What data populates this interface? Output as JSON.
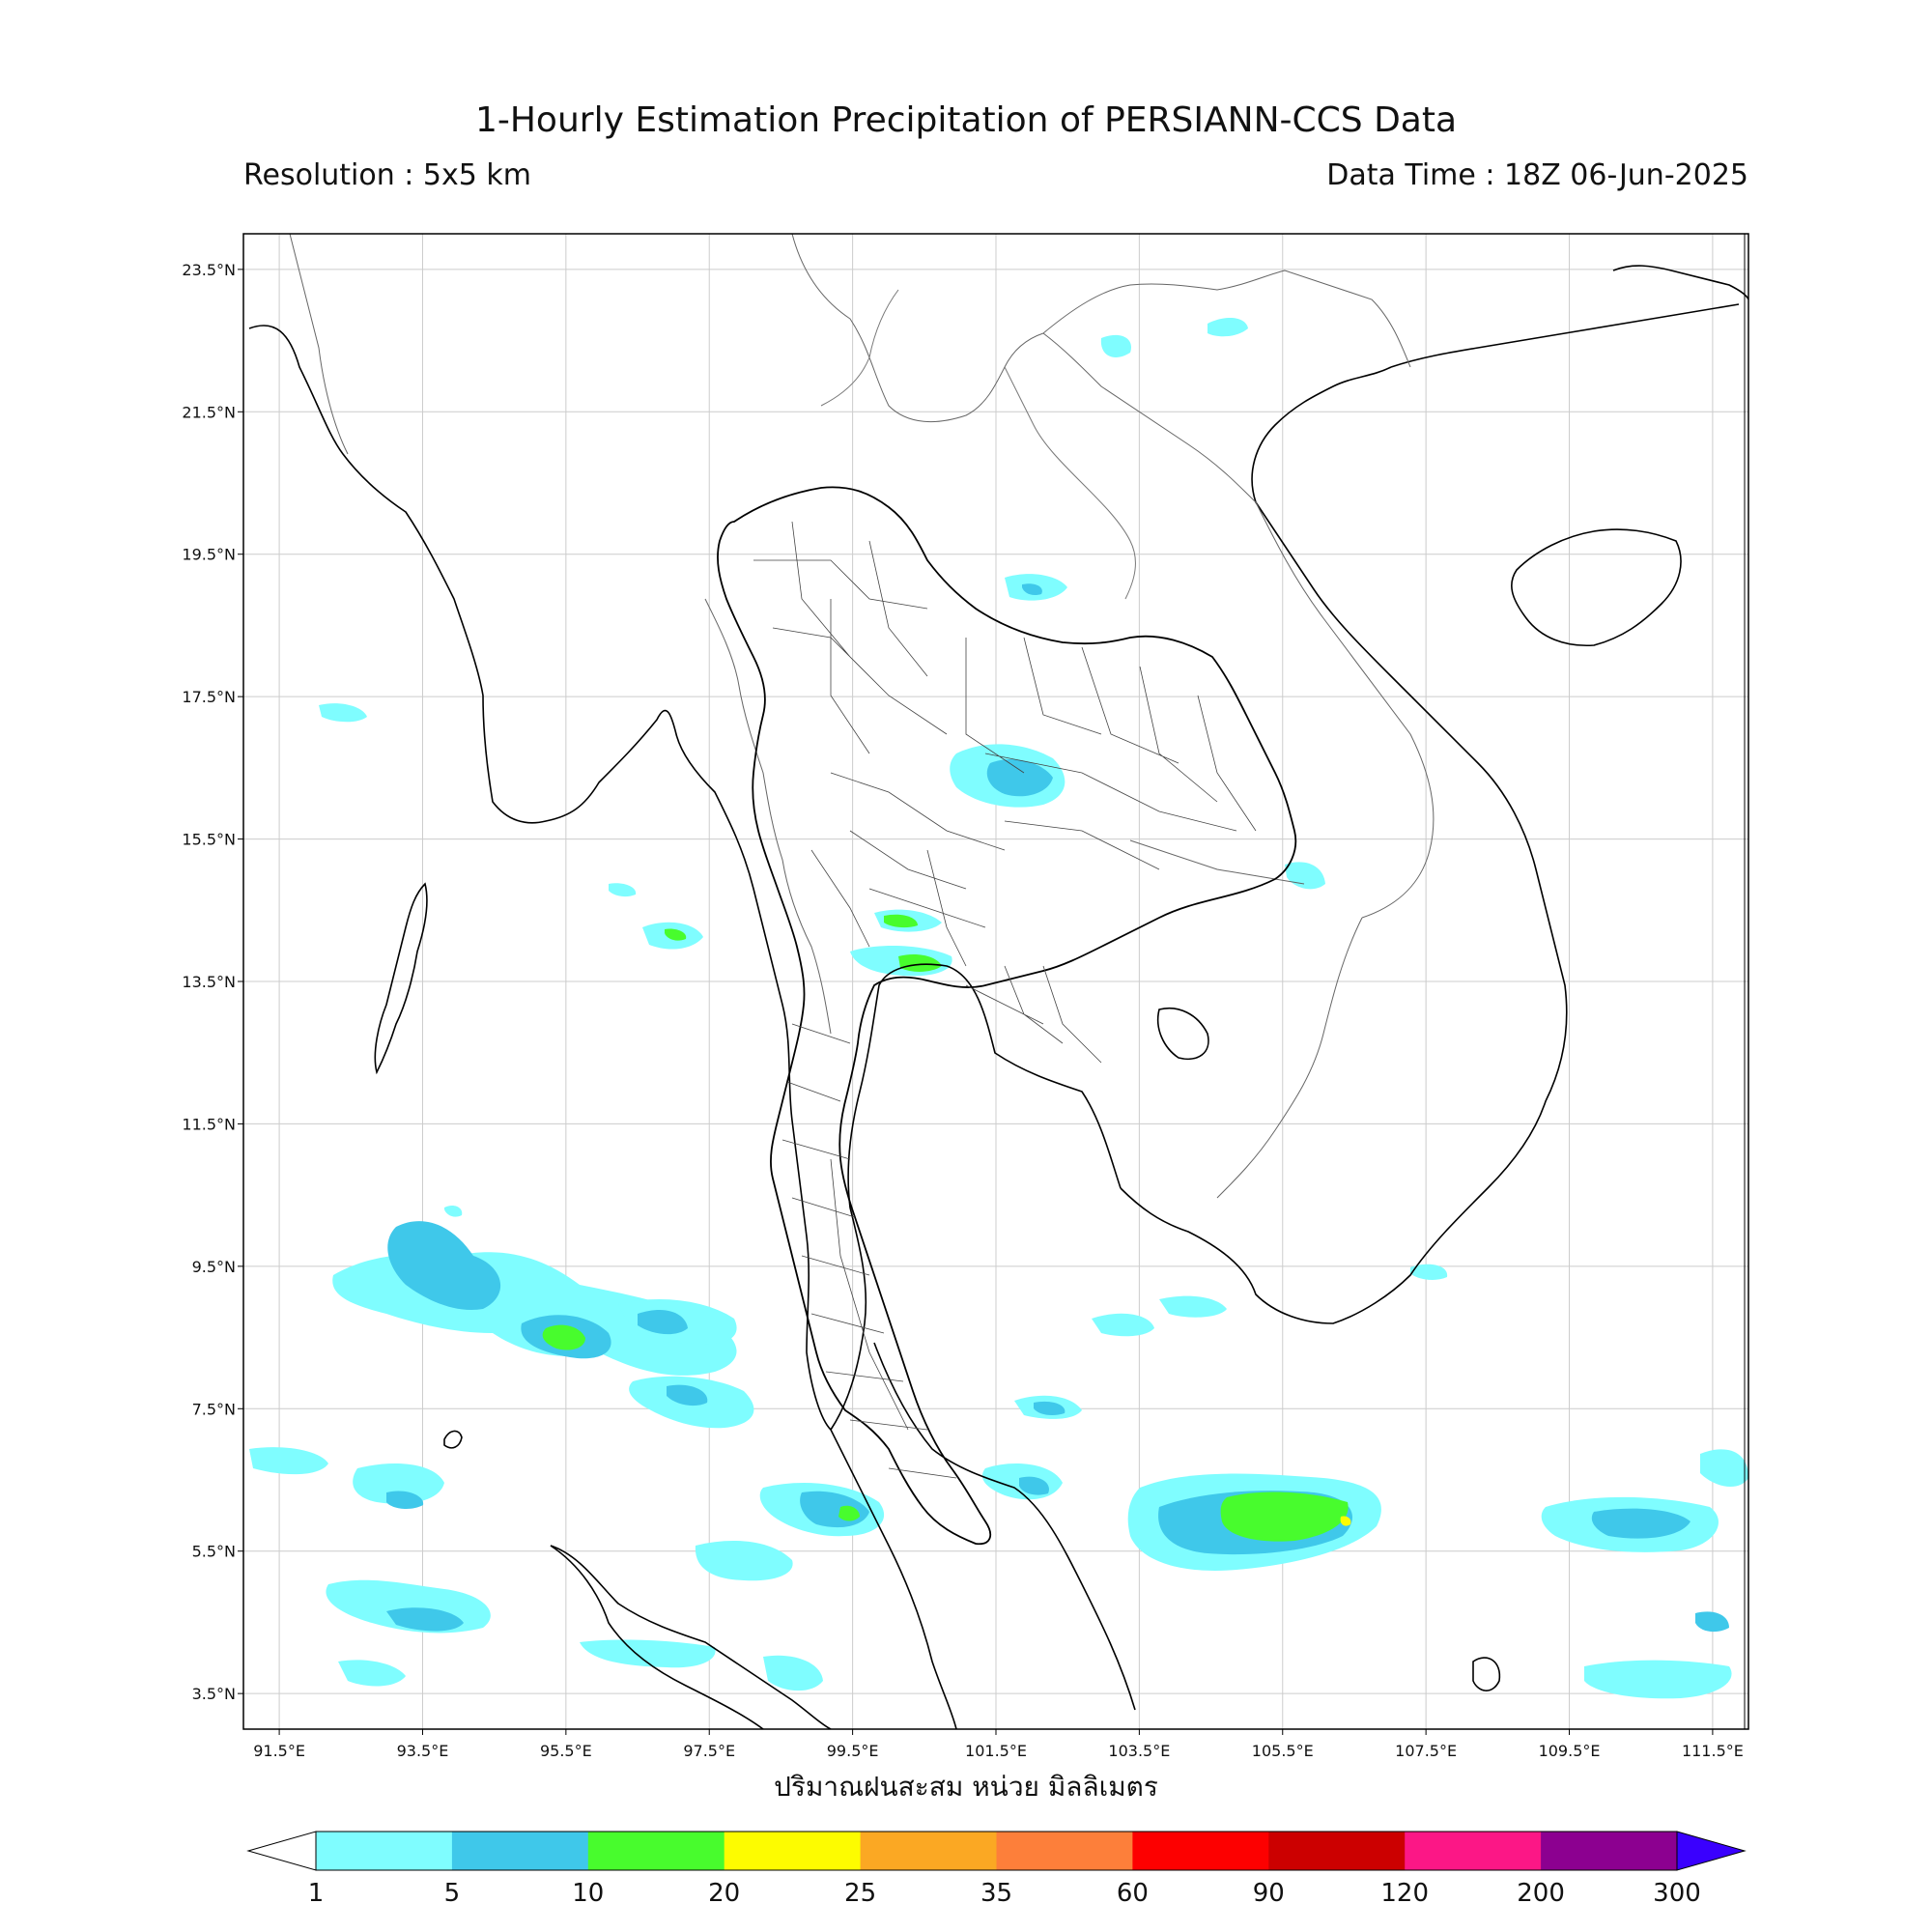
{
  "header": {
    "title": "1-Hourly Estimation Precipitation of PERSIANN-CCS Data",
    "resolution": "Resolution : 5x5 km",
    "data_time": "Data Time : 18Z 06-Jun-2025"
  },
  "map": {
    "lon_range": [
      91,
      112
    ],
    "lat_range": [
      3,
      24
    ],
    "x_ticks": [
      "91.5°E",
      "93.5°E",
      "95.5°E",
      "97.5°E",
      "99.5°E",
      "101.5°E",
      "103.5°E",
      "105.5°E",
      "107.5°E",
      "109.5°E",
      "111.5°E"
    ],
    "y_ticks": [
      "23.5°N",
      "21.5°N",
      "19.5°N",
      "17.5°N",
      "15.5°N",
      "13.5°N",
      "11.5°N",
      "9.5°N",
      "7.5°N",
      "5.5°N",
      "3.5°N"
    ],
    "x_tick_values": [
      91.5,
      93.5,
      95.5,
      97.5,
      99.5,
      101.5,
      103.5,
      105.5,
      107.5,
      109.5,
      111.5
    ],
    "y_tick_values": [
      23.5,
      21.5,
      19.5,
      17.5,
      15.5,
      13.5,
      11.5,
      9.5,
      7.5,
      5.5,
      3.5
    ],
    "x_axis_label": "ปริมาณฝนสะสม หน่วย มิลลิเมตร",
    "grid": true
  },
  "colorbar": {
    "labels": [
      "1",
      "5",
      "10",
      "20",
      "25",
      "35",
      "60",
      "90",
      "120",
      "200",
      "300"
    ],
    "colors": [
      "#7ffdff",
      "#3fc8ea",
      "#48fc2d",
      "#fdfc00",
      "#fba823",
      "#fd7f3a",
      "#fd0000",
      "#cc0000",
      "#fc1786",
      "#8c0090"
    ],
    "over_color": "#3a00fe",
    "under_color": "#ffffff"
  },
  "colors": {
    "light_rain": "#7ffdff",
    "moderate_rain": "#3fc8ea",
    "heavy_rain": "#48fc2d",
    "very_heavy_rain": "#fdfc00"
  }
}
